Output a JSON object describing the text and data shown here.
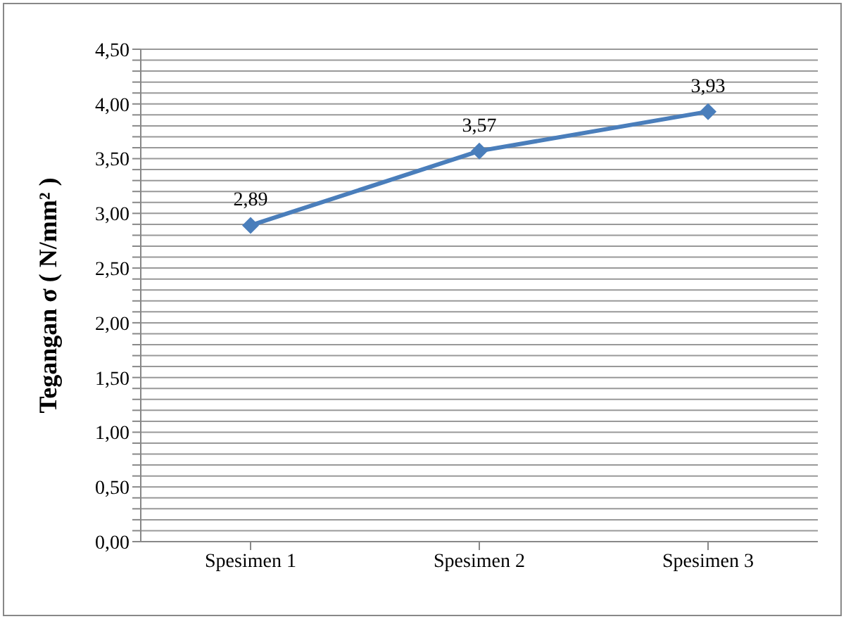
{
  "chart_data": {
    "type": "line",
    "ylabel": "Tegangan  σ  ( N/mm² )",
    "categories": [
      "Spesimen 1",
      "Spesimen 2",
      "Spesimen 3"
    ],
    "series": [
      {
        "color": "#4a7ebb",
        "values": [
          2.89,
          3.57,
          3.93
        ],
        "value_labels": [
          "2,89",
          "3,57",
          "3,93"
        ]
      }
    ],
    "ylim": [
      0,
      4.5
    ],
    "yticks": [
      {
        "value": 0,
        "label": "0,00"
      },
      {
        "value": 0.1,
        "label": null
      },
      {
        "value": 0.2,
        "label": null
      },
      {
        "value": 0.3,
        "label": null
      },
      {
        "value": 0.4,
        "label": null
      },
      {
        "value": 0.5,
        "label": "0,50"
      },
      {
        "value": 0.6,
        "label": null
      },
      {
        "value": 0.7,
        "label": null
      },
      {
        "value": 0.8,
        "label": null
      },
      {
        "value": 0.9,
        "label": null
      },
      {
        "value": 1,
        "label": "1,00"
      },
      {
        "value": 1.1,
        "label": null
      },
      {
        "value": 1.2,
        "label": null
      },
      {
        "value": 1.3,
        "label": null
      },
      {
        "value": 1.4,
        "label": null
      },
      {
        "value": 1.5,
        "label": "1,50"
      },
      {
        "value": 1.6,
        "label": null
      },
      {
        "value": 1.7,
        "label": null
      },
      {
        "value": 1.8,
        "label": null
      },
      {
        "value": 1.9,
        "label": null
      },
      {
        "value": 2,
        "label": "2,00"
      },
      {
        "value": 2.1,
        "label": null
      },
      {
        "value": 2.2,
        "label": null
      },
      {
        "value": 2.3,
        "label": null
      },
      {
        "value": 2.4,
        "label": null
      },
      {
        "value": 2.5,
        "label": "2,50"
      },
      {
        "value": 2.6,
        "label": null
      },
      {
        "value": 2.7,
        "label": null
      },
      {
        "value": 2.8,
        "label": null
      },
      {
        "value": 2.9,
        "label": null
      },
      {
        "value": 3,
        "label": "3,00"
      },
      {
        "value": 3.1,
        "label": null
      },
      {
        "value": 3.2,
        "label": null
      },
      {
        "value": 3.3,
        "label": null
      },
      {
        "value": 3.4,
        "label": null
      },
      {
        "value": 3.5,
        "label": "3,50"
      },
      {
        "value": 3.6,
        "label": null
      },
      {
        "value": 3.7,
        "label": null
      },
      {
        "value": 3.8,
        "label": null
      },
      {
        "value": 3.9,
        "label": null
      },
      {
        "value": 4,
        "label": "4,00"
      },
      {
        "value": 4.1,
        "label": null
      },
      {
        "value": 4.2,
        "label": null
      },
      {
        "value": 4.3,
        "label": null
      },
      {
        "value": 4.4,
        "label": null
      },
      {
        "value": 4.5,
        "label": "4,50"
      }
    ],
    "grid": "y",
    "marker": "diamond",
    "line_style": "solid",
    "legend": false
  }
}
